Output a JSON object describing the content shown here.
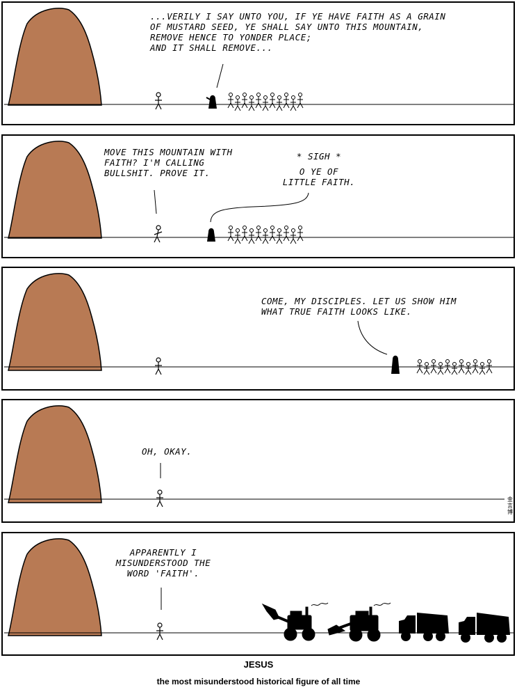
{
  "colors": {
    "mountain": "#b87a54",
    "ink": "#000000",
    "background": "#ffffff"
  },
  "panels": [
    {
      "speech": "...VERILY I SAY UNTO YOU, IF YE HAVE FAITH AS A GRAIN\nOF MUSTARD SEED, YE SHALL SAY UNTO THIS MOUNTAIN,\nREMOVE HENCE TO YONDER PLACE;\nAND IT SHALL REMOVE..."
    },
    {
      "speech": "MOVE THIS MOUNTAIN WITH\nFAITH? I'M CALLING\nBULLSHIT. PROVE IT.",
      "sigh": "* SIGH *",
      "reply": "O YE OF\nLITTLE FAITH."
    },
    {
      "speech": "COME, MY DISCIPLES. LET US SHOW HIM\nWHAT TRUE FAITH LOOKS LIKE."
    },
    {
      "speech": "OH, OKAY.",
      "signature": "金 言 博"
    },
    {
      "speech": "APPARENTLY I\nMISUNDERSTOOD THE\nWORD 'FAITH'."
    }
  ],
  "caption": {
    "title": "JESUS",
    "subtitle": "the most misunderstood historical figure of all time"
  }
}
